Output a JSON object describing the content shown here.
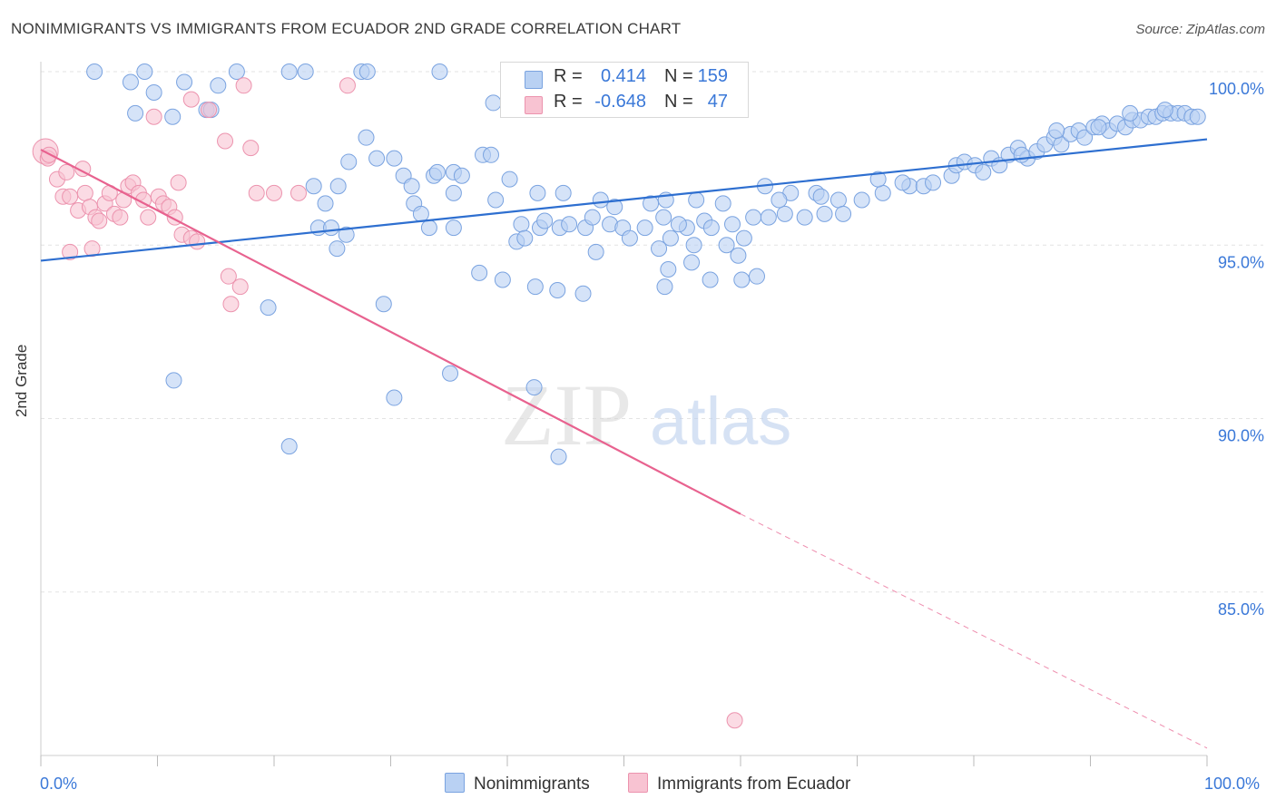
{
  "title": "NONIMMIGRANTS VS IMMIGRANTS FROM ECUADOR 2ND GRADE CORRELATION CHART",
  "source": "Source: ZipAtlas.com",
  "watermark": {
    "zip": "ZIP",
    "atlas": "atlas"
  },
  "colors": {
    "blue_fill": "#b9d1f3",
    "blue_stroke": "#7aa3e0",
    "blue_line": "#2e6fd0",
    "pink_fill": "#f8c3d2",
    "pink_stroke": "#ec93ae",
    "pink_line": "#e8628f",
    "tick_text": "#3a78d8",
    "grid": "#e3e3e3"
  },
  "legend_stats": [
    {
      "r_label": "R =",
      "r_value": "0.414",
      "n_label": "N =",
      "n_value": "159"
    },
    {
      "r_label": "R =",
      "r_value": "-0.648",
      "n_label": "N =",
      "n_value": "47"
    }
  ],
  "chart_data": {
    "type": "scatter",
    "title": "NONIMMIGRANTS VS IMMIGRANTS FROM ECUADOR 2ND GRADE CORRELATION CHART",
    "xlabel": "",
    "ylabel": "2nd Grade",
    "xlim": [
      0,
      100
    ],
    "ylim": [
      80.5,
      100.8
    ],
    "x_tick_labels": [
      "0.0%",
      "100.0%"
    ],
    "y_ticks": [
      {
        "value": 100,
        "label": "100.0%"
      },
      {
        "value": 95,
        "label": "95.0%"
      },
      {
        "value": 90,
        "label": "90.0%"
      },
      {
        "value": 85,
        "label": "85.0%"
      }
    ],
    "grid": true,
    "legend_position": "bottom",
    "series": [
      {
        "name": "Nonimmigrants",
        "trend": {
          "x": [
            0,
            100
          ],
          "y": [
            94.55,
            98.05
          ]
        },
        "points": [
          [
            4.6,
            100
          ],
          [
            8.9,
            100
          ],
          [
            16.8,
            100
          ],
          [
            21.3,
            100
          ],
          [
            22.7,
            100
          ],
          [
            27.5,
            100
          ],
          [
            28,
            100
          ],
          [
            34.2,
            100
          ],
          [
            7.7,
            99.7
          ],
          [
            9.7,
            99.4
          ],
          [
            12.3,
            99.7
          ],
          [
            14.2,
            98.9
          ],
          [
            14.6,
            98.9
          ],
          [
            15.2,
            99.6
          ],
          [
            8.1,
            98.8
          ],
          [
            11.3,
            98.7
          ],
          [
            27.9,
            98.1
          ],
          [
            26.4,
            97.4
          ],
          [
            28.8,
            97.5
          ],
          [
            30.3,
            97.5
          ],
          [
            31.1,
            97
          ],
          [
            33.7,
            97
          ],
          [
            34,
            97.1
          ],
          [
            35.4,
            97.1
          ],
          [
            37.9,
            97.6
          ],
          [
            38.6,
            97.6
          ],
          [
            40.2,
            96.9
          ],
          [
            36.1,
            97
          ],
          [
            31.8,
            96.7
          ],
          [
            35.4,
            96.5
          ],
          [
            39,
            96.3
          ],
          [
            42.6,
            96.5
          ],
          [
            44.8,
            96.5
          ],
          [
            48,
            96.3
          ],
          [
            49.2,
            96.1
          ],
          [
            52.3,
            96.2
          ],
          [
            53.6,
            96.3
          ],
          [
            56.2,
            96.3
          ],
          [
            58.5,
            96.2
          ],
          [
            62.1,
            96.7
          ],
          [
            64.3,
            96.5
          ],
          [
            66.5,
            96.5
          ],
          [
            66.9,
            96.4
          ],
          [
            68.4,
            96.3
          ],
          [
            70.4,
            96.3
          ],
          [
            72.2,
            96.5
          ],
          [
            74.5,
            96.7
          ],
          [
            75.7,
            96.7
          ],
          [
            76.5,
            96.8
          ],
          [
            73.9,
            96.8
          ],
          [
            71.8,
            96.9
          ],
          [
            78.1,
            97
          ],
          [
            78.5,
            97.3
          ],
          [
            79.2,
            97.4
          ],
          [
            80.1,
            97.3
          ],
          [
            80.8,
            97.1
          ],
          [
            81.5,
            97.5
          ],
          [
            82.2,
            97.3
          ],
          [
            83,
            97.6
          ],
          [
            83.8,
            97.8
          ],
          [
            84.6,
            97.5
          ],
          [
            85.4,
            97.7
          ],
          [
            86.1,
            97.9
          ],
          [
            86.9,
            98.1
          ],
          [
            87.5,
            97.9
          ],
          [
            88.3,
            98.2
          ],
          [
            89,
            98.3
          ],
          [
            89.5,
            98.1
          ],
          [
            90.3,
            98.4
          ],
          [
            91,
            98.5
          ],
          [
            91.6,
            98.3
          ],
          [
            92.3,
            98.5
          ],
          [
            93,
            98.4
          ],
          [
            93.6,
            98.6
          ],
          [
            94.3,
            98.6
          ],
          [
            95,
            98.7
          ],
          [
            95.6,
            98.7
          ],
          [
            96.2,
            98.8
          ],
          [
            96.9,
            98.8
          ],
          [
            97.5,
            98.8
          ],
          [
            98.1,
            98.8
          ],
          [
            98.7,
            98.7
          ],
          [
            99.2,
            98.7
          ],
          [
            84.1,
            97.6
          ],
          [
            87.1,
            98.3
          ],
          [
            90.7,
            98.4
          ],
          [
            93.4,
            98.8
          ],
          [
            96.4,
            98.9
          ],
          [
            23.4,
            96.7
          ],
          [
            25.5,
            96.7
          ],
          [
            24.4,
            96.2
          ],
          [
            32,
            96.2
          ],
          [
            32.6,
            95.9
          ],
          [
            33.3,
            95.5
          ],
          [
            35.4,
            95.5
          ],
          [
            41.2,
            95.6
          ],
          [
            44.5,
            95.5
          ],
          [
            45.3,
            95.6
          ],
          [
            46.7,
            95.5
          ],
          [
            47.3,
            95.8
          ],
          [
            48.8,
            95.6
          ],
          [
            49.9,
            95.5
          ],
          [
            51.8,
            95.5
          ],
          [
            53.4,
            95.8
          ],
          [
            55.4,
            95.5
          ],
          [
            56.9,
            95.7
          ],
          [
            59.3,
            95.6
          ],
          [
            61.1,
            95.8
          ],
          [
            62.4,
            95.8
          ],
          [
            63.8,
            95.9
          ],
          [
            65.5,
            95.8
          ],
          [
            67.2,
            95.9
          ],
          [
            68.8,
            95.9
          ],
          [
            60.3,
            95.2
          ],
          [
            57.5,
            95.5
          ],
          [
            23.8,
            95.5
          ],
          [
            24.9,
            95.5
          ],
          [
            26.2,
            95.3
          ],
          [
            25.4,
            94.9
          ],
          [
            40.8,
            95.1
          ],
          [
            41.5,
            95.2
          ],
          [
            42.8,
            95.5
          ],
          [
            47.6,
            94.8
          ],
          [
            50.5,
            95.2
          ],
          [
            53,
            94.9
          ],
          [
            54,
            95.2
          ],
          [
            56,
            95
          ],
          [
            58.8,
            95
          ],
          [
            53.8,
            94.3
          ],
          [
            55.8,
            94.5
          ],
          [
            59.8,
            94.7
          ],
          [
            37.6,
            94.2
          ],
          [
            39.6,
            94
          ],
          [
            61.4,
            94.1
          ],
          [
            60.1,
            94
          ],
          [
            42.4,
            93.8
          ],
          [
            44.3,
            93.7
          ],
          [
            46.5,
            93.6
          ],
          [
            53.5,
            93.8
          ],
          [
            57.4,
            94
          ],
          [
            19.5,
            93.2
          ],
          [
            29.4,
            93.3
          ],
          [
            11.4,
            91.1
          ],
          [
            35.1,
            91.3
          ],
          [
            42.3,
            90.9
          ],
          [
            30.3,
            90.6
          ],
          [
            21.3,
            89.2
          ],
          [
            44.4,
            88.9
          ],
          [
            38.8,
            99.1
          ],
          [
            43.2,
            95.7
          ],
          [
            54.7,
            95.6
          ],
          [
            63.3,
            96.3
          ]
        ]
      },
      {
        "name": "Immigrants from Ecuador",
        "trend": {
          "x": [
            0,
            60
          ],
          "y": [
            97.75,
            87.25
          ],
          "dash_to": {
            "x": 100,
            "y": 80.5
          }
        },
        "points": [
          [
            0.4,
            97.7
          ],
          [
            0.6,
            97.5
          ],
          [
            0.7,
            97.6
          ],
          [
            1.4,
            96.9
          ],
          [
            2.2,
            97.1
          ],
          [
            3.6,
            97.2
          ],
          [
            1.9,
            96.4
          ],
          [
            2.5,
            96.4
          ],
          [
            3.2,
            96
          ],
          [
            3.8,
            96.5
          ],
          [
            4.2,
            96.1
          ],
          [
            4.7,
            95.8
          ],
          [
            5,
            95.7
          ],
          [
            5.5,
            96.2
          ],
          [
            5.9,
            96.5
          ],
          [
            6.3,
            95.9
          ],
          [
            6.8,
            95.8
          ],
          [
            7.1,
            96.3
          ],
          [
            7.5,
            96.7
          ],
          [
            7.9,
            96.8
          ],
          [
            8.4,
            96.5
          ],
          [
            8.8,
            96.3
          ],
          [
            9.2,
            95.8
          ],
          [
            10.1,
            96.4
          ],
          [
            10.5,
            96.2
          ],
          [
            11,
            96.1
          ],
          [
            11.5,
            95.8
          ],
          [
            12.1,
            95.3
          ],
          [
            12.9,
            95.2
          ],
          [
            13.4,
            95.1
          ],
          [
            2.5,
            94.8
          ],
          [
            4.4,
            94.9
          ],
          [
            11.8,
            96.8
          ],
          [
            12.9,
            99.2
          ],
          [
            14.4,
            98.9
          ],
          [
            15.8,
            98
          ],
          [
            18,
            97.8
          ],
          [
            17.4,
            99.6
          ],
          [
            26.3,
            99.6
          ],
          [
            9.7,
            98.7
          ],
          [
            18.5,
            96.5
          ],
          [
            20,
            96.5
          ],
          [
            22.1,
            96.5
          ],
          [
            16.1,
            94.1
          ],
          [
            17.1,
            93.8
          ],
          [
            16.3,
            93.3
          ],
          [
            59.5,
            81.3
          ]
        ]
      }
    ]
  }
}
